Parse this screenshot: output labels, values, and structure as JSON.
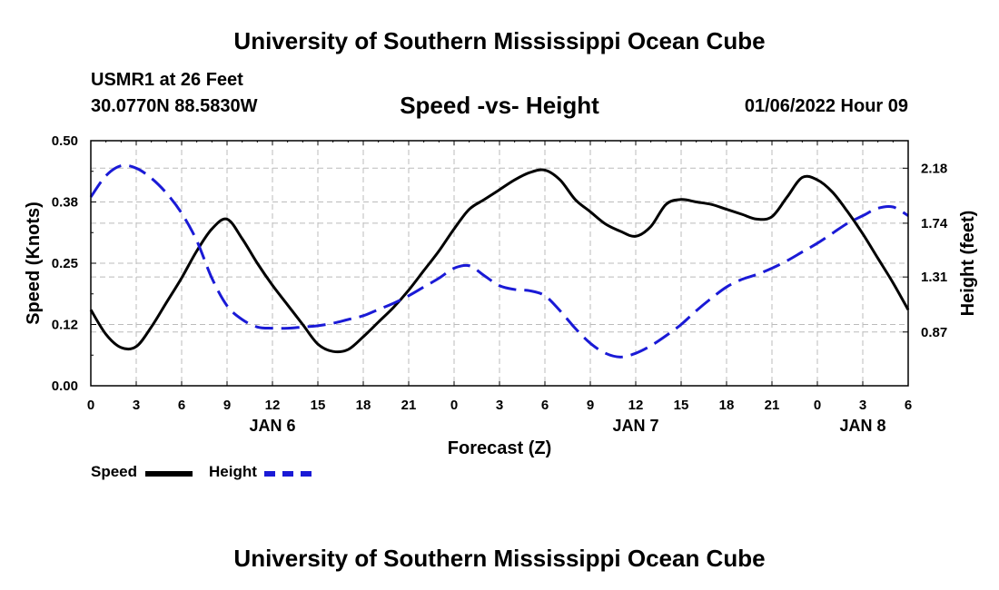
{
  "header": {
    "title": "University of Southern Mississippi Ocean Cube",
    "station": "USMR1 at 26 Feet",
    "coords": "30.0770N  88.5830W",
    "subtitle": "Speed -vs- Height",
    "datetime": "01/06/2022 Hour 09"
  },
  "footer": {
    "title": "University of Southern Mississippi Ocean Cube"
  },
  "legend": {
    "speed_label": "Speed",
    "height_label": "Height"
  },
  "colors": {
    "speed": "#000000",
    "height": "#1a1ad6",
    "grid": "#bbbbbb"
  },
  "chart_data": {
    "type": "line",
    "title": "Speed -vs- Height",
    "xlabel": "Forecast (Z)",
    "ylabel": "Speed (Knots)",
    "y2label": "Height (feet)",
    "x_range": [
      0,
      54
    ],
    "x_ticks": [
      0,
      3,
      6,
      9,
      12,
      15,
      18,
      21,
      24,
      27,
      30,
      33,
      36,
      39,
      42,
      45,
      48,
      51,
      54
    ],
    "x_tick_labels": [
      "0",
      "3",
      "6",
      "9",
      "12",
      "15",
      "18",
      "21",
      "0",
      "3",
      "6",
      "9",
      "12",
      "15",
      "18",
      "21",
      "0",
      "3",
      "6"
    ],
    "date_labels": [
      {
        "x": 12,
        "label": "JAN 6"
      },
      {
        "x": 36,
        "label": "JAN 7"
      },
      {
        "x": 51,
        "label": "JAN 8"
      }
    ],
    "ylim": [
      0,
      0.5
    ],
    "y_ticks": [
      0,
      0.125,
      0.25,
      0.375,
      0.5
    ],
    "y_tick_labels": [
      "0.00",
      "0.12",
      "0.25",
      "0.38",
      "0.50"
    ],
    "y2lim": [
      0.44,
      2.4
    ],
    "y2_ticks": [
      0.87,
      1.31,
      1.74,
      2.18
    ],
    "y2_tick_labels": [
      "0.87",
      "1.31",
      "1.74",
      "2.18"
    ],
    "grid": true,
    "series": [
      {
        "name": "Speed",
        "axis": "left",
        "style": "solid",
        "x": [
          0,
          1,
          2,
          3,
          4,
          5,
          6,
          7,
          8,
          9,
          10,
          11,
          12,
          13,
          14,
          15,
          16,
          17,
          18,
          19,
          20,
          21,
          22,
          23,
          24,
          25,
          26,
          27,
          28,
          29,
          30,
          31,
          32,
          33,
          34,
          35,
          36,
          37,
          38,
          39,
          40,
          41,
          42,
          43,
          44,
          45,
          46,
          47,
          48,
          49,
          50,
          51,
          52,
          53,
          54
        ],
        "values": [
          0.155,
          0.105,
          0.078,
          0.08,
          0.12,
          0.17,
          0.22,
          0.275,
          0.32,
          0.34,
          0.3,
          0.25,
          0.205,
          0.165,
          0.125,
          0.085,
          0.07,
          0.074,
          0.1,
          0.13,
          0.16,
          0.195,
          0.235,
          0.275,
          0.32,
          0.36,
          0.38,
          0.4,
          0.42,
          0.435,
          0.44,
          0.42,
          0.38,
          0.355,
          0.33,
          0.315,
          0.305,
          0.325,
          0.37,
          0.38,
          0.375,
          0.37,
          0.36,
          0.35,
          0.34,
          0.345,
          0.385,
          0.425,
          0.42,
          0.395,
          0.355,
          0.31,
          0.26,
          0.21,
          0.155
        ]
      },
      {
        "name": "Height",
        "axis": "right",
        "style": "dashed",
        "x": [
          0,
          1,
          2,
          3,
          4,
          5,
          6,
          7,
          8,
          9,
          10,
          11,
          12,
          13,
          14,
          15,
          16,
          17,
          18,
          19,
          20,
          21,
          22,
          23,
          24,
          25,
          26,
          27,
          28,
          29,
          30,
          31,
          32,
          33,
          34,
          35,
          36,
          37,
          38,
          39,
          40,
          41,
          42,
          43,
          44,
          45,
          46,
          47,
          48,
          49,
          50,
          51,
          52,
          53,
          54
        ],
        "values": [
          1.95,
          2.12,
          2.2,
          2.18,
          2.1,
          1.98,
          1.82,
          1.6,
          1.3,
          1.08,
          0.97,
          0.91,
          0.9,
          0.9,
          0.91,
          0.92,
          0.94,
          0.97,
          1.0,
          1.05,
          1.1,
          1.16,
          1.23,
          1.3,
          1.38,
          1.4,
          1.32,
          1.24,
          1.21,
          1.2,
          1.16,
          1.04,
          0.9,
          0.78,
          0.7,
          0.67,
          0.7,
          0.76,
          0.84,
          0.93,
          1.04,
          1.14,
          1.23,
          1.29,
          1.33,
          1.38,
          1.44,
          1.51,
          1.58,
          1.66,
          1.74,
          1.8,
          1.86,
          1.87,
          1.8
        ]
      }
    ]
  }
}
